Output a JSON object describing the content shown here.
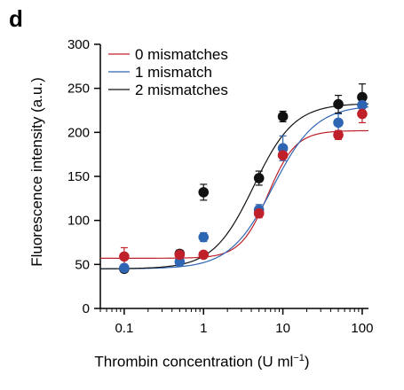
{
  "panel_label": "d",
  "chart_data": {
    "type": "scatter",
    "title": "",
    "xlabel_main": "Thrombin concentration (U ml",
    "xlabel_sup": "−1",
    "xlabel_end": ")",
    "ylabel": "Fluorescence intensity (a.u.)",
    "xscale": "log",
    "xlim": [
      0.05,
      120
    ],
    "ylim": [
      0,
      300
    ],
    "x_ticks": [
      0.1,
      1,
      10,
      100
    ],
    "x_tick_labels": [
      "0.1",
      "1",
      "10",
      "100"
    ],
    "y_ticks": [
      0,
      50,
      100,
      150,
      200,
      250,
      300
    ],
    "y_tick_labels": [
      "0",
      "50",
      "100",
      "150",
      "200",
      "250",
      "300"
    ],
    "grid": false,
    "legend_position": "top-left",
    "series": [
      {
        "name": "0 mismatches",
        "color": "#c0202a",
        "x": [
          0.1,
          0.5,
          1,
          5,
          10,
          50,
          100
        ],
        "y": [
          59,
          61,
          61,
          108,
          174,
          197,
          221
        ],
        "err": [
          10,
          5,
          3,
          5,
          6,
          5,
          10
        ],
        "fit": {
          "bottom": 57,
          "top": 202,
          "ec50": 6.5,
          "hill": 2.5
        }
      },
      {
        "name": "1 mismatch",
        "color": "#2f66b4",
        "x": [
          0.1,
          0.5,
          1,
          5,
          10,
          50,
          100
        ],
        "y": [
          46,
          53,
          81,
          112,
          182,
          211,
          231
        ],
        "err": [
          4,
          5,
          5,
          6,
          14,
          10,
          8
        ],
        "fit": {
          "bottom": 45,
          "top": 231,
          "ec50": 7.5,
          "hill": 1.6
        }
      },
      {
        "name": "2 mismatches",
        "color": "#111111",
        "x": [
          0.1,
          0.5,
          1,
          5,
          10,
          50,
          100
        ],
        "y": [
          45,
          62,
          132,
          148,
          218,
          232,
          240
        ],
        "err": [
          3,
          4,
          9,
          8,
          6,
          10,
          15
        ],
        "fit": {
          "bottom": 45,
          "top": 233,
          "ec50": 4.3,
          "hill": 1.7
        }
      }
    ]
  }
}
